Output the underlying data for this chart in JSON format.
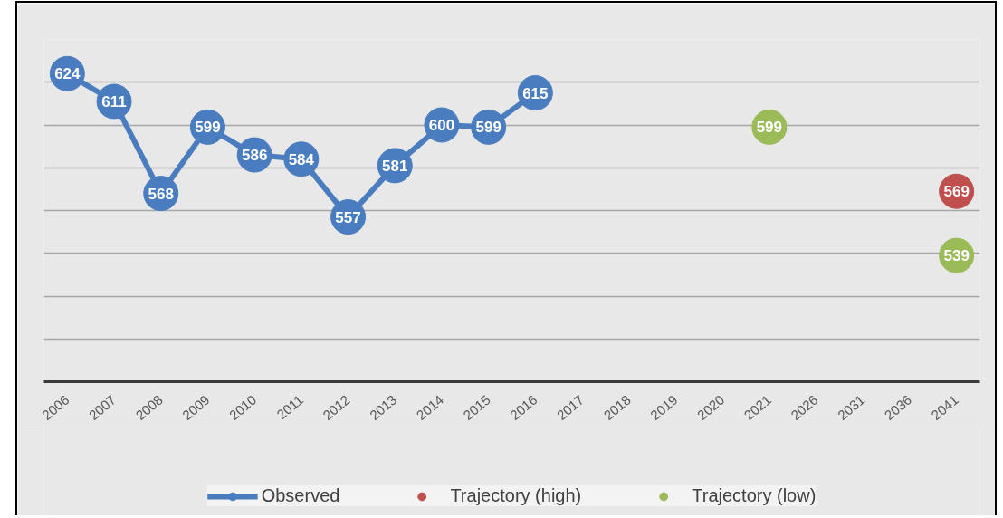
{
  "chart_data": {
    "type": "line",
    "categories": [
      "2006",
      "2007",
      "2008",
      "2009",
      "2010",
      "2011",
      "2012",
      "2013",
      "2014",
      "2015",
      "2016",
      "2017",
      "2018",
      "2019",
      "2020",
      "2021",
      "2026",
      "2031",
      "2036",
      "2041"
    ],
    "series": [
      {
        "name": "Observed",
        "color": "#4a7dbf",
        "values": [
          624,
          611,
          568,
          599,
          586,
          584,
          557,
          581,
          600,
          599,
          615,
          null,
          null,
          null,
          null,
          null,
          null,
          null,
          null,
          null
        ]
      },
      {
        "name": "Trajectory (high)",
        "type": "scatter",
        "color": "#c0504d",
        "values": [
          null,
          null,
          null,
          null,
          null,
          null,
          null,
          null,
          null,
          null,
          null,
          null,
          null,
          null,
          null,
          null,
          null,
          null,
          null,
          569
        ]
      },
      {
        "name": "Trajectory (low)",
        "type": "scatter",
        "color": "#9bbb59",
        "values": [
          null,
          null,
          null,
          null,
          null,
          null,
          null,
          null,
          null,
          null,
          null,
          null,
          null,
          null,
          null,
          599,
          null,
          null,
          null,
          539
        ]
      }
    ],
    "ylim": [
      480,
      640
    ],
    "yticks": [
      {
        "value": 480,
        "label": null
      },
      {
        "value": 500,
        "label": null
      },
      {
        "value": 520,
        "label": null
      },
      {
        "value": 540,
        "label": null
      },
      {
        "value": 560,
        "label": null
      },
      {
        "value": 580,
        "label": null
      },
      {
        "value": 600,
        "label": null
      },
      {
        "value": 620,
        "label": null
      },
      {
        "value": 640,
        "label": null
      }
    ],
    "tick_labels": "x",
    "grid": "y",
    "legend": "bottom",
    "marker": "circle",
    "line_style": "solid",
    "data_labels": true
  }
}
